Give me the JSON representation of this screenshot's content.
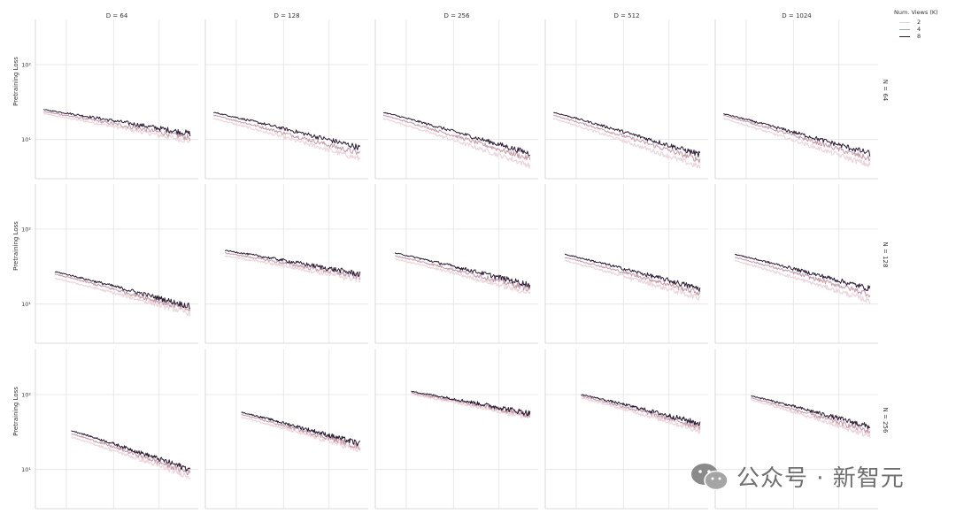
{
  "chart_data": {
    "type": "line",
    "layout": "facet-grid 3 rows x 5 columns",
    "ylabel": "Pretraining Loss",
    "yscale": "log",
    "ylim": [
      3,
      400
    ],
    "yticks": [
      {
        "value": 10,
        "label": "10¹"
      },
      {
        "value": 100,
        "label": "10²"
      }
    ],
    "x_scale": "shared, no tick labels shown",
    "grid": true,
    "column_titles": [
      "D = 64",
      "D = 128",
      "D = 256",
      "D = 512",
      "D = 1024"
    ],
    "row_titles": [
      "N = 64",
      "N = 128",
      "N = 256"
    ],
    "legend": {
      "title": "Num. Views (K)",
      "position": "top-right",
      "entries": [
        {
          "label": "2",
          "color": "#ead3d8"
        },
        {
          "label": "4",
          "color": "#c49aa6"
        },
        {
          "label": "8",
          "color": "#2b1a33"
        }
      ]
    },
    "series_note": "approximate loss curves per view count; x in relative training progress 0-1",
    "panels": [
      {
        "row": 0,
        "col": 0,
        "x_start": 0.05,
        "x_end": 0.95,
        "start": {
          "2": 22,
          "4": 23.5,
          "8": 25
        },
        "end": {
          "2": 9.5,
          "4": 10.5,
          "8": 12
        }
      },
      {
        "row": 0,
        "col": 1,
        "x_start": 0.05,
        "x_end": 0.95,
        "start": {
          "2": 19,
          "4": 21,
          "8": 23
        },
        "end": {
          "2": 5.5,
          "4": 6.5,
          "8": 7.8
        }
      },
      {
        "row": 0,
        "col": 2,
        "x_start": 0.05,
        "x_end": 0.95,
        "start": {
          "2": 19,
          "4": 21,
          "8": 23
        },
        "end": {
          "2": 4.5,
          "4": 5.5,
          "8": 6.5
        }
      },
      {
        "row": 0,
        "col": 3,
        "x_start": 0.05,
        "x_end": 0.95,
        "start": {
          "2": 19,
          "4": 21,
          "8": 23
        },
        "end": {
          "2": 4.3,
          "4": 5.3,
          "8": 6.3
        }
      },
      {
        "row": 0,
        "col": 4,
        "x_start": 0.05,
        "x_end": 0.95,
        "start": {
          "2": 19,
          "4": 21,
          "8": 22
        },
        "end": {
          "2": 4.5,
          "4": 5.5,
          "8": 6.5
        }
      },
      {
        "row": 1,
        "col": 0,
        "x_start": 0.12,
        "x_end": 0.95,
        "start": {
          "2": 22,
          "4": 25,
          "8": 27
        },
        "end": {
          "2": 7.5,
          "4": 8.3,
          "8": 9.3
        }
      },
      {
        "row": 1,
        "col": 1,
        "x_start": 0.12,
        "x_end": 0.95,
        "start": {
          "2": 44,
          "4": 48,
          "8": 52
        },
        "end": {
          "2": 21,
          "4": 23,
          "8": 25
        }
      },
      {
        "row": 1,
        "col": 2,
        "x_start": 0.12,
        "x_end": 0.95,
        "start": {
          "2": 40,
          "4": 44,
          "8": 48
        },
        "end": {
          "2": 14,
          "4": 16,
          "8": 18
        }
      },
      {
        "row": 1,
        "col": 3,
        "x_start": 0.12,
        "x_end": 0.95,
        "start": {
          "2": 38,
          "4": 42,
          "8": 46
        },
        "end": {
          "2": 12,
          "4": 14,
          "8": 16
        }
      },
      {
        "row": 1,
        "col": 4,
        "x_start": 0.12,
        "x_end": 0.95,
        "start": {
          "2": 38,
          "4": 42,
          "8": 46
        },
        "end": {
          "2": 11,
          "4": 13.5,
          "8": 16
        }
      },
      {
        "row": 2,
        "col": 0,
        "x_start": 0.22,
        "x_end": 0.95,
        "start": {
          "2": 27,
          "4": 30,
          "8": 33
        },
        "end": {
          "2": 8,
          "4": 9,
          "8": 10
        }
      },
      {
        "row": 2,
        "col": 1,
        "x_start": 0.22,
        "x_end": 0.95,
        "start": {
          "2": 50,
          "4": 54,
          "8": 58
        },
        "end": {
          "2": 18,
          "4": 20,
          "8": 22
        }
      },
      {
        "row": 2,
        "col": 2,
        "x_start": 0.22,
        "x_end": 0.95,
        "start": {
          "2": 100,
          "4": 105,
          "8": 110
        },
        "end": {
          "2": 50,
          "4": 53,
          "8": 56
        }
      },
      {
        "row": 2,
        "col": 3,
        "x_start": 0.22,
        "x_end": 0.95,
        "start": {
          "2": 90,
          "4": 95,
          "8": 100
        },
        "end": {
          "2": 33,
          "4": 37,
          "8": 41
        }
      },
      {
        "row": 2,
        "col": 4,
        "x_start": 0.22,
        "x_end": 0.95,
        "start": {
          "2": 85,
          "4": 90,
          "8": 96
        },
        "end": {
          "2": 28,
          "4": 32,
          "8": 37
        }
      }
    ]
  },
  "watermark": {
    "text": "公众号 · 新智元",
    "icon": "wechat-logo-icon"
  }
}
